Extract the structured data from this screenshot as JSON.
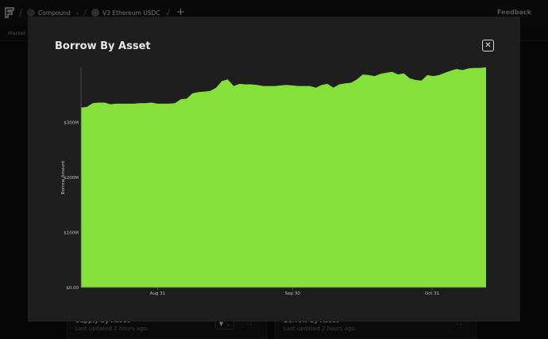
{
  "topbar": {
    "protocol": "Compound",
    "market": "V3 Ethereum USDC",
    "feedback": "Feedback",
    "add_label": "+"
  },
  "subbar": {
    "tab": "Market s"
  },
  "cards": [
    {
      "title": "Supply By Asset",
      "subtitle": "Last updated 2 hours ago."
    },
    {
      "title": "Borrow By Asset",
      "subtitle": "Last updated 2 hours ago."
    }
  ],
  "modal": {
    "title": "Borrow By Asset",
    "close_label": "✕"
  },
  "chart_data": {
    "type": "area",
    "title": "Borrow By Asset",
    "xlabel": "",
    "ylabel": "Borrow Amount",
    "color": "#86e03a",
    "ylim": [
      0,
      400
    ],
    "y_unit": "M",
    "y_ticks": [
      {
        "value": 0,
        "label": "$0.00"
      },
      {
        "value": 100,
        "label": "$100M"
      },
      {
        "value": 200,
        "label": "$200M"
      },
      {
        "value": 300,
        "label": "$300M"
      }
    ],
    "x_ticks": [
      {
        "value": 17,
        "label": "Aug 31"
      },
      {
        "value": 47,
        "label": "Sep 30"
      },
      {
        "value": 78,
        "label": "Oct 31"
      }
    ],
    "x_range": [
      0,
      90
    ],
    "values": [
      327,
      328,
      335,
      336,
      336,
      333,
      334,
      334,
      334,
      334,
      335,
      335,
      336,
      334,
      334,
      334,
      335,
      342,
      343,
      353,
      355,
      356,
      357,
      363,
      375,
      378,
      366,
      370,
      369,
      369,
      368,
      366,
      366,
      366,
      367,
      368,
      367,
      366,
      366,
      366,
      363,
      368,
      370,
      363,
      369,
      371,
      372,
      378,
      387,
      386,
      384,
      388,
      390,
      392,
      387,
      389,
      380,
      377,
      376,
      386,
      384,
      386,
      390,
      394,
      397,
      395,
      398,
      399,
      399,
      400
    ]
  }
}
